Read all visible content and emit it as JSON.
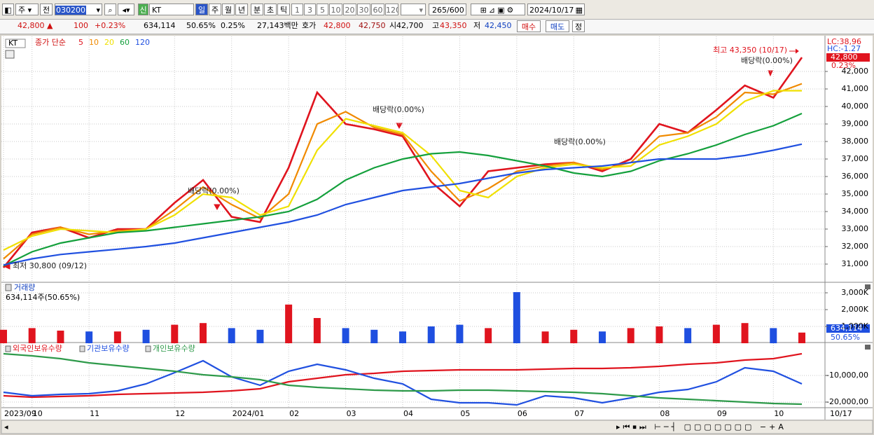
{
  "toolbar": {
    "period_type": "주",
    "prev": "전",
    "code": "030200",
    "new": "신",
    "name": "KT",
    "intervals": [
      "일",
      "주",
      "월",
      "년",
      "분",
      "초",
      "틱"
    ],
    "minutes": [
      "1",
      "3",
      "5",
      "10",
      "20",
      "30",
      "60",
      "120"
    ],
    "count": "265",
    "max": "/600",
    "date": "2024/10/17"
  },
  "info_bar": {
    "price": "42,800 ▲",
    "change": "100",
    "change_rate": "+0.23%",
    "volume": "634,114",
    "volume_rate": "50.65%",
    "turnover": "0.25%",
    "amount": "27,143백만",
    "quote_label": "호가",
    "ask": "42,800",
    "bid": "42,750",
    "open_label": "시",
    "open": "42,700",
    "high_label": "고",
    "high": "43,350",
    "low_label": "저",
    "low": "42,450",
    "buy": "매수",
    "sell": "매도",
    "extra": "정"
  },
  "chart_data": [
    {
      "type": "line",
      "title": "KT",
      "legend_prefix": "종가 단순",
      "series": [
        {
          "name": "5",
          "color": "#e0141e",
          "values": [
            30800,
            32800,
            33100,
            32500,
            33000,
            33000,
            34500,
            35800,
            33700,
            33400,
            36500,
            40800,
            39000,
            38700,
            38300,
            35700,
            34300,
            36300,
            36500,
            36700,
            36800,
            36300,
            37000,
            39000,
            38500,
            39800,
            41200,
            40500,
            42800
          ]
        },
        {
          "name": "10",
          "color": "#f08a00",
          "values": [
            31300,
            32700,
            33100,
            32700,
            32900,
            33000,
            34100,
            35400,
            34400,
            33600,
            35000,
            39000,
            39700,
            38800,
            38400,
            36300,
            34600,
            35300,
            36300,
            36600,
            36800,
            36400,
            36800,
            38300,
            38500,
            39400,
            40800,
            40700,
            41300
          ]
        },
        {
          "name": "20",
          "color": "#f0e000",
          "values": [
            31800,
            32600,
            33000,
            32900,
            32800,
            33000,
            33800,
            35000,
            34800,
            33800,
            34300,
            37500,
            39300,
            38900,
            38500,
            37200,
            35200,
            34800,
            36000,
            36500,
            36700,
            36500,
            36600,
            37800,
            38300,
            39000,
            40300,
            40900,
            40900
          ]
        },
        {
          "name": "60",
          "color": "#14a03c",
          "values": [
            30900,
            31700,
            32200,
            32500,
            32800,
            32900,
            33100,
            33300,
            33500,
            33700,
            34000,
            34700,
            35800,
            36500,
            37000,
            37300,
            37400,
            37200,
            36900,
            36600,
            36200,
            36000,
            36300,
            36900,
            37300,
            37800,
            38400,
            38900,
            39600
          ]
        },
        {
          "name": "120",
          "color": "#2050e0",
          "values": [
            30950,
            31300,
            31550,
            31700,
            31850,
            32000,
            32200,
            32500,
            32800,
            33100,
            33400,
            33800,
            34400,
            34800,
            35200,
            35400,
            35600,
            35900,
            36200,
            36400,
            36500,
            36600,
            36800,
            37000,
            37000,
            37000,
            37200,
            37500,
            37850
          ]
        }
      ],
      "ylim": [
        30000,
        44000
      ],
      "yticks": [
        {
          "value": 31000,
          "label": "31,000"
        },
        {
          "value": 32000,
          "label": "32,000"
        },
        {
          "value": 33000,
          "label": "33,000"
        },
        {
          "value": 34000,
          "label": "34,000"
        },
        {
          "value": 35000,
          "label": "35,000"
        },
        {
          "value": 36000,
          "label": "36,000"
        },
        {
          "value": 37000,
          "label": "37,000"
        },
        {
          "value": 38000,
          "label": "38,000"
        },
        {
          "value": 39000,
          "label": "39,000"
        },
        {
          "value": 40000,
          "label": "40,000"
        },
        {
          "value": 41000,
          "label": "41,000"
        },
        {
          "value": 42000,
          "label": "42,000"
        }
      ],
      "grid": true,
      "annotations": [
        "최고 43,350 (10/17)",
        "배당락(0.00%)",
        "배당락(0.00%)",
        "배당락(0.00%)",
        "배당락(0.00%)",
        "최저 30,800 (09/12)"
      ],
      "right_labels": {
        "lc": "LC:38,96",
        "hc": "HC:-1.27",
        "current_price": "42,800",
        "current_rate": "0.23%"
      }
    },
    {
      "type": "bar",
      "title": "거래량",
      "subtitle": "634,114주(50.65%)",
      "values": [
        800000,
        900000,
        750000,
        700000,
        700000,
        800000,
        1100000,
        1200000,
        900000,
        800000,
        2300000,
        1500000,
        900000,
        800000,
        700000,
        1000000,
        1100000,
        900000,
        3040000,
        700000,
        800000,
        700000,
        900000,
        1000000,
        900000,
        1100000,
        1200000,
        900000,
        634114
      ],
      "colors": [
        "#e0141e",
        "#e0141e",
        "#e0141e",
        "#1f4fe0",
        "#e0141e",
        "#1f4fe0",
        "#e0141e",
        "#e0141e",
        "#1f4fe0",
        "#1f4fe0",
        "#e0141e",
        "#e0141e",
        "#1f4fe0",
        "#1f4fe0",
        "#1f4fe0",
        "#1f4fe0",
        "#1f4fe0",
        "#e0141e",
        "#1f4fe0",
        "#e0141e",
        "#e0141e",
        "#1f4fe0",
        "#e0141e",
        "#e0141e",
        "#1f4fe0",
        "#e0141e",
        "#e0141e",
        "#1f4fe0",
        "#e0141e"
      ],
      "ylim": [
        0,
        3583000
      ],
      "yticks": [
        {
          "value": 1000000,
          "label": "1,000K"
        },
        {
          "value": 2000000,
          "label": "2,000K"
        },
        {
          "value": 3000000,
          "label": "3,000K"
        }
      ],
      "current_label": "634,114",
      "current_ratio": "50.65%"
    },
    {
      "type": "line",
      "series": [
        {
          "name": "외국인보유수량",
          "color": "#e0141e",
          "values": [
            -17630000,
            -18160000,
            -17890000,
            -17630000,
            -17110000,
            -16840000,
            -16580000,
            -16320000,
            -15790000,
            -15000000,
            -12370000,
            -11050000,
            -9740000,
            -9210000,
            -8420000,
            -8160000,
            -7890000,
            -7890000,
            -7890000,
            -7630000,
            -7370000,
            -7370000,
            -7110000,
            -6580000,
            -5790000,
            -5260000,
            -4210000,
            -3680000,
            -1840000
          ]
        },
        {
          "name": "기관보유수량",
          "color": "#2050e0",
          "values": [
            -16320000,
            -17630000,
            -17110000,
            -16840000,
            -15790000,
            -13160000,
            -8950000,
            -4470000,
            -10530000,
            -13680000,
            -8420000,
            -5790000,
            -7890000,
            -11050000,
            -13160000,
            -18950000,
            -20260000,
            -20260000,
            -21050000,
            -17630000,
            -18420000,
            -20260000,
            -18420000,
            -16320000,
            -15260000,
            -12370000,
            -7110000,
            -8420000,
            -13160000
          ]
        },
        {
          "name": "개인보유수량",
          "color": "#2e9a4a",
          "values": [
            -1840000,
            -2630000,
            -3680000,
            -5260000,
            -6320000,
            -7370000,
            -8420000,
            -9740000,
            -10530000,
            -11580000,
            -13680000,
            -14470000,
            -15000000,
            -15530000,
            -15790000,
            -15790000,
            -15530000,
            -15530000,
            -15790000,
            -16050000,
            -16320000,
            -16840000,
            -17630000,
            -18420000,
            -18950000,
            -19470000,
            -20000000,
            -20530000,
            -20790000
          ]
        }
      ],
      "ylim": [
        -22110000,
        1580000
      ],
      "yticks": [
        {
          "value": -10000000,
          "label": "-10,000,00"
        },
        {
          "value": -20000000,
          "label": "-20,000,00"
        }
      ],
      "categories": [
        "2023/09",
        "10",
        null,
        "11",
        null,
        null,
        "12",
        null,
        "2024/01",
        null,
        "02",
        null,
        "03",
        null,
        "04",
        null,
        "05",
        null,
        "06",
        null,
        "07",
        null,
        null,
        "08",
        null,
        "09",
        null,
        "10",
        null
      ],
      "last_label": "10/17"
    }
  ]
}
